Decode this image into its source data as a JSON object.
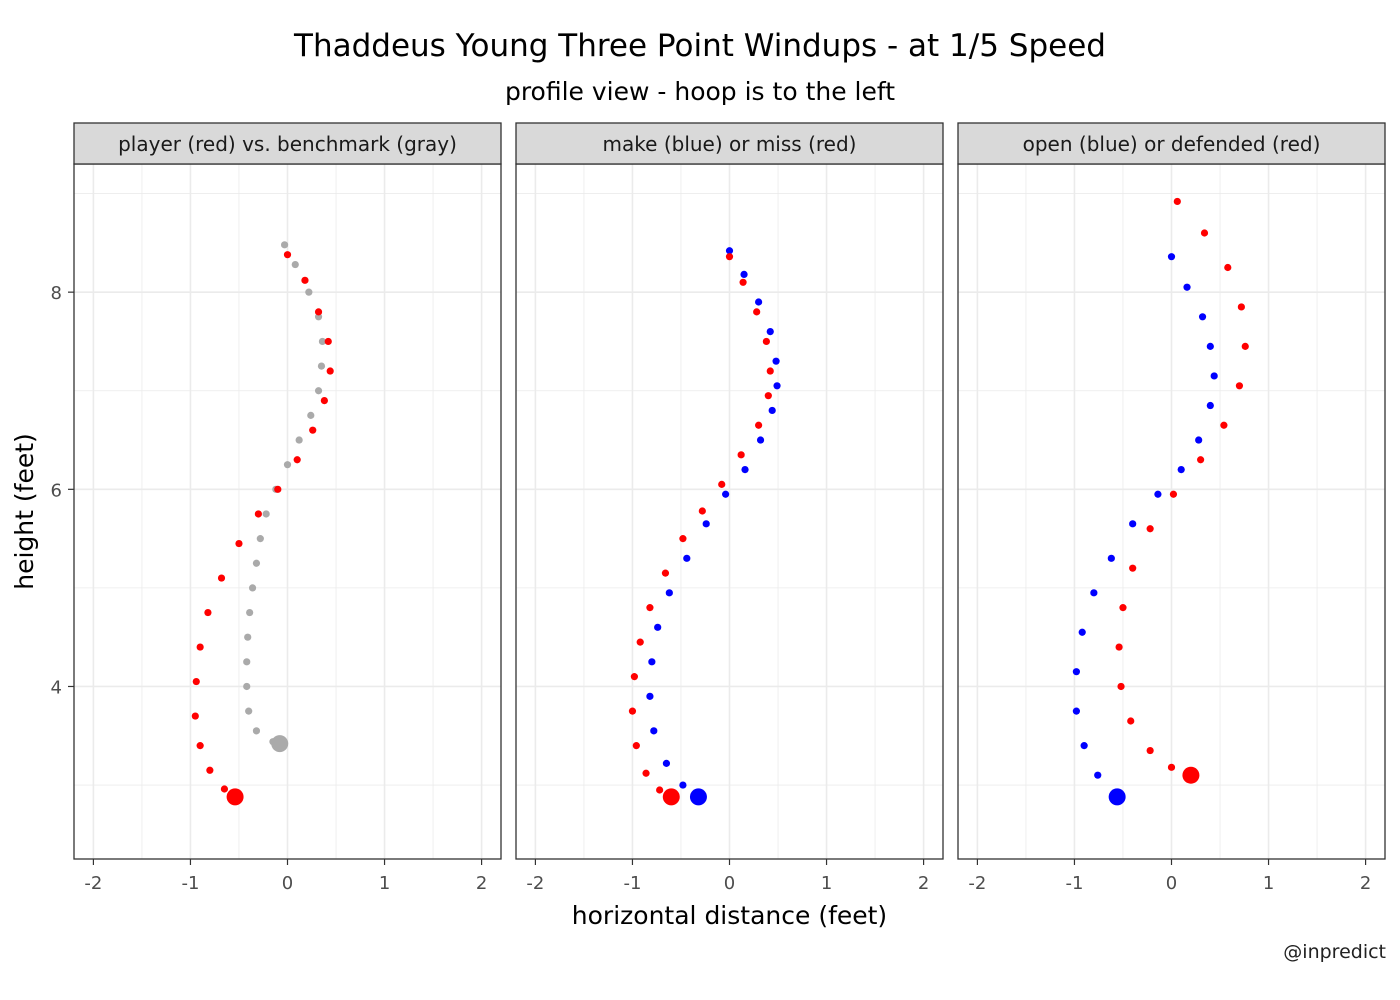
{
  "title": "Thaddeus Young Three Point Windups - at 1/5 Speed",
  "subtitle": "profile view - hoop is to the left",
  "credit": "@inpredict",
  "colors": {
    "red": "#ff0000",
    "blue": "#0000ff",
    "gray": "#aaaaaa",
    "strip": "#d9d9d9",
    "grid": "#ebebeb"
  },
  "chart_data": {
    "type": "scatter",
    "xlabel": "horizontal distance (feet)",
    "ylabel": "height (feet)",
    "xlim": [
      -2.2,
      2.2
    ],
    "ylim": [
      2.25,
      9.3
    ],
    "x_ticks": [
      -2,
      -1,
      0,
      1,
      2
    ],
    "x_tick_labels": [
      "-2",
      "-1",
      "0",
      "1",
      "2"
    ],
    "y_ticks": [
      4,
      6,
      8
    ],
    "y_tick_labels": [
      "4",
      "6",
      "8"
    ],
    "grid": true,
    "panels": [
      {
        "strip": "player (red) vs. benchmark (gray)",
        "series": [
          {
            "color": "gray",
            "start": [
              -0.08,
              3.42
            ],
            "points": [
              [
                -0.03,
                8.48
              ],
              [
                0.08,
                8.28
              ],
              [
                0.22,
                8.0
              ],
              [
                0.32,
                7.75
              ],
              [
                0.36,
                7.5
              ],
              [
                0.35,
                7.25
              ],
              [
                0.32,
                7.0
              ],
              [
                0.24,
                6.75
              ],
              [
                0.12,
                6.5
              ],
              [
                0.0,
                6.25
              ],
              [
                -0.12,
                6.0
              ],
              [
                -0.22,
                5.75
              ],
              [
                -0.28,
                5.5
              ],
              [
                -0.32,
                5.25
              ],
              [
                -0.36,
                5.0
              ],
              [
                -0.39,
                4.75
              ],
              [
                -0.41,
                4.5
              ],
              [
                -0.42,
                4.25
              ],
              [
                -0.42,
                4.0
              ],
              [
                -0.4,
                3.75
              ],
              [
                -0.32,
                3.55
              ],
              [
                -0.15,
                3.44
              ],
              [
                -0.08,
                3.42
              ]
            ]
          },
          {
            "color": "red",
            "start": [
              -0.54,
              2.88
            ],
            "points": [
              [
                0.0,
                8.38
              ],
              [
                0.18,
                8.12
              ],
              [
                0.32,
                7.8
              ],
              [
                0.42,
                7.5
              ],
              [
                0.44,
                7.2
              ],
              [
                0.38,
                6.9
              ],
              [
                0.26,
                6.6
              ],
              [
                0.1,
                6.3
              ],
              [
                -0.1,
                6.0
              ],
              [
                -0.3,
                5.75
              ],
              [
                -0.5,
                5.45
              ],
              [
                -0.68,
                5.1
              ],
              [
                -0.82,
                4.75
              ],
              [
                -0.9,
                4.4
              ],
              [
                -0.94,
                4.05
              ],
              [
                -0.95,
                3.7
              ],
              [
                -0.9,
                3.4
              ],
              [
                -0.8,
                3.15
              ],
              [
                -0.65,
                2.96
              ],
              [
                -0.54,
                2.88
              ]
            ]
          }
        ]
      },
      {
        "strip": "make (blue) or miss (red)",
        "series": [
          {
            "color": "blue",
            "start": [
              -0.32,
              2.88
            ],
            "points": [
              [
                0.0,
                8.42
              ],
              [
                0.15,
                8.18
              ],
              [
                0.3,
                7.9
              ],
              [
                0.42,
                7.6
              ],
              [
                0.48,
                7.3
              ],
              [
                0.49,
                7.05
              ],
              [
                0.44,
                6.8
              ],
              [
                0.32,
                6.5
              ],
              [
                0.16,
                6.2
              ],
              [
                -0.04,
                5.95
              ],
              [
                -0.24,
                5.65
              ],
              [
                -0.44,
                5.3
              ],
              [
                -0.62,
                4.95
              ],
              [
                -0.74,
                4.6
              ],
              [
                -0.8,
                4.25
              ],
              [
                -0.82,
                3.9
              ],
              [
                -0.78,
                3.55
              ],
              [
                -0.65,
                3.22
              ],
              [
                -0.48,
                3.0
              ],
              [
                -0.32,
                2.88
              ]
            ]
          },
          {
            "color": "red",
            "start": [
              -0.6,
              2.88
            ],
            "points": [
              [
                0.0,
                8.36
              ],
              [
                0.14,
                8.1
              ],
              [
                0.28,
                7.8
              ],
              [
                0.38,
                7.5
              ],
              [
                0.42,
                7.2
              ],
              [
                0.4,
                6.95
              ],
              [
                0.3,
                6.65
              ],
              [
                0.12,
                6.35
              ],
              [
                -0.08,
                6.05
              ],
              [
                -0.28,
                5.78
              ],
              [
                -0.48,
                5.5
              ],
              [
                -0.66,
                5.15
              ],
              [
                -0.82,
                4.8
              ],
              [
                -0.92,
                4.45
              ],
              [
                -0.98,
                4.1
              ],
              [
                -1.0,
                3.75
              ],
              [
                -0.96,
                3.4
              ],
              [
                -0.86,
                3.12
              ],
              [
                -0.72,
                2.95
              ],
              [
                -0.6,
                2.88
              ]
            ]
          }
        ]
      },
      {
        "strip": "open (blue) or defended (red)",
        "series": [
          {
            "color": "blue",
            "start": [
              -0.56,
              2.88
            ],
            "points": [
              [
                0.0,
                8.36
              ],
              [
                0.16,
                8.05
              ],
              [
                0.32,
                7.75
              ],
              [
                0.4,
                7.45
              ],
              [
                0.44,
                7.15
              ],
              [
                0.4,
                6.85
              ],
              [
                0.28,
                6.5
              ],
              [
                0.1,
                6.2
              ],
              [
                -0.14,
                5.95
              ],
              [
                -0.4,
                5.65
              ],
              [
                -0.62,
                5.3
              ],
              [
                -0.8,
                4.95
              ],
              [
                -0.92,
                4.55
              ],
              [
                -0.98,
                4.15
              ],
              [
                -0.98,
                3.75
              ],
              [
                -0.9,
                3.4
              ],
              [
                -0.76,
                3.1
              ],
              [
                -0.56,
                2.88
              ]
            ]
          },
          {
            "color": "red",
            "start": [
              0.2,
              3.1
            ],
            "points": [
              [
                0.06,
                8.92
              ],
              [
                0.34,
                8.6
              ],
              [
                0.58,
                8.25
              ],
              [
                0.72,
                7.85
              ],
              [
                0.76,
                7.45
              ],
              [
                0.7,
                7.05
              ],
              [
                0.54,
                6.65
              ],
              [
                0.3,
                6.3
              ],
              [
                0.02,
                5.95
              ],
              [
                -0.22,
                5.6
              ],
              [
                -0.4,
                5.2
              ],
              [
                -0.5,
                4.8
              ],
              [
                -0.54,
                4.4
              ],
              [
                -0.52,
                4.0
              ],
              [
                -0.42,
                3.65
              ],
              [
                -0.22,
                3.35
              ],
              [
                0.0,
                3.18
              ],
              [
                0.2,
                3.1
              ]
            ]
          }
        ]
      }
    ]
  }
}
